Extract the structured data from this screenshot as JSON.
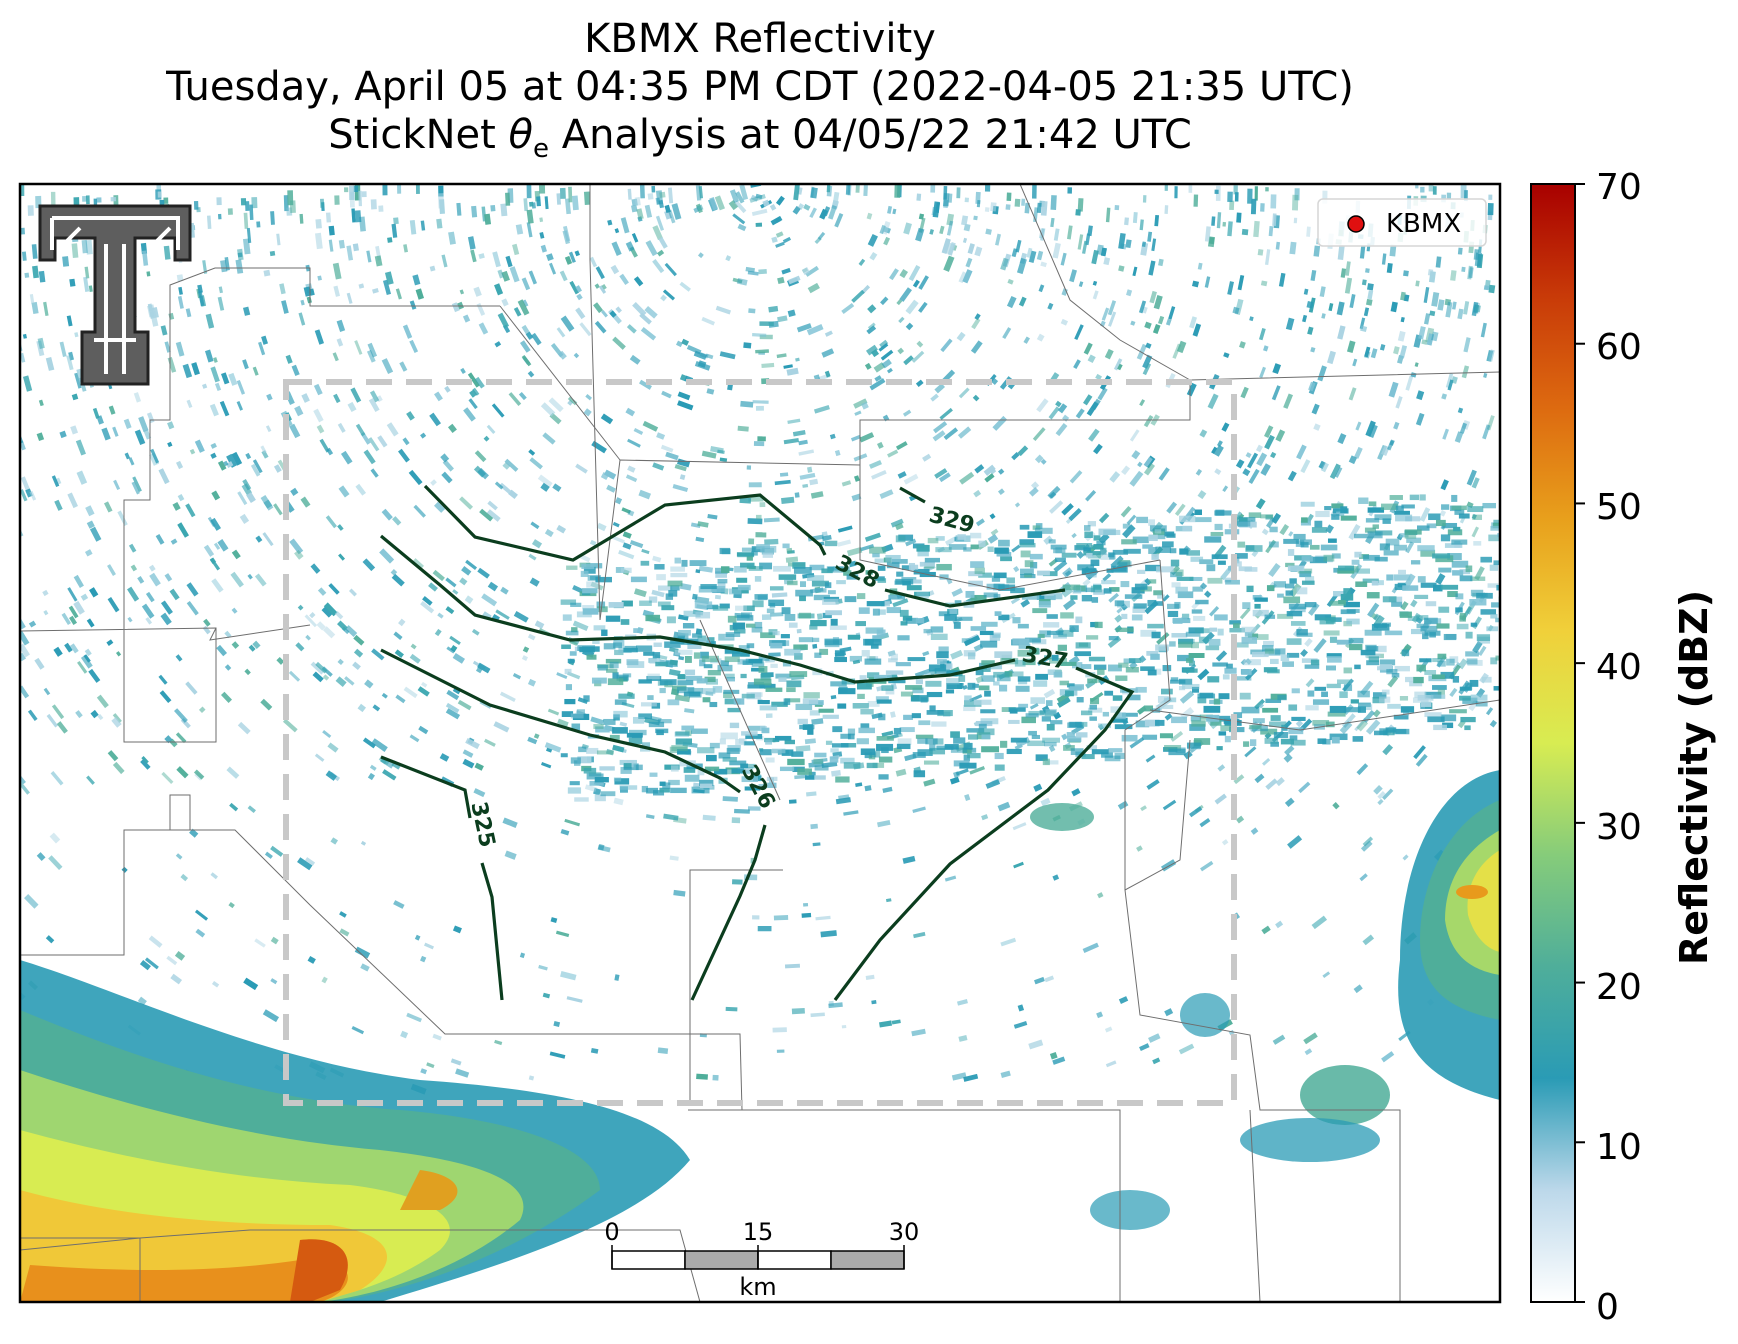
{
  "title": {
    "line1": "KBMX Reflectivity",
    "line2": "Tuesday, April 05 at 04:35 PM CDT (2022-04-05 21:35 UTC)",
    "line3_prefix": "StickNet ",
    "line3_symbol": "θ",
    "line3_sub": "e",
    "line3_suffix": " Analysis at 04/05/22 21:42 UTC"
  },
  "legend": {
    "label": "KBMX",
    "marker_color": "#e01010"
  },
  "logo": {
    "name": "texas-tech-double-t-logo"
  },
  "colorbar": {
    "label": "Reflectivity (dBZ)",
    "ticks": [
      "0",
      "10",
      "20",
      "30",
      "40",
      "50",
      "60",
      "70"
    ],
    "min": 0,
    "max": 70,
    "colors": [
      "#ffffff",
      "#bcd8ea",
      "#2a9bb5",
      "#4fae9a",
      "#86cc7a",
      "#d8ec52",
      "#f0d03a",
      "#e8a01c",
      "#dd6a10",
      "#c83a08",
      "#a80000"
    ]
  },
  "scale_bar": {
    "labels": [
      "0",
      "15",
      "30"
    ],
    "unit": "km"
  },
  "contours": [
    {
      "label": "325"
    },
    {
      "label": "326"
    },
    {
      "label": "327"
    },
    {
      "label": "328"
    },
    {
      "label": "329"
    }
  ],
  "styles": {
    "contour_color": "#0b3d1e",
    "domain_box_color": "#c8c8c8"
  }
}
